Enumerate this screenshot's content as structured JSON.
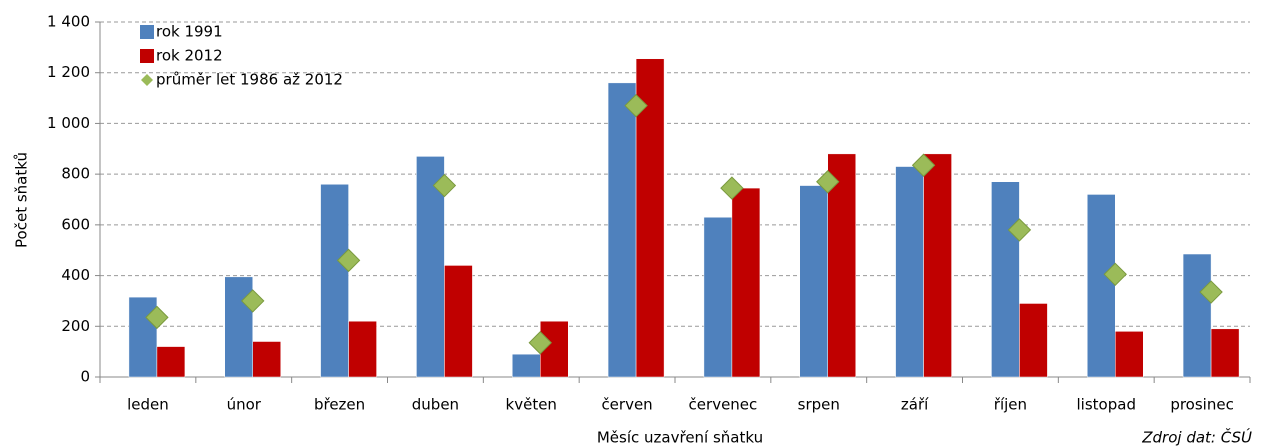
{
  "chart_data": {
    "type": "bar",
    "y_label": "Počet sňatků",
    "x_label": "Měsíc uzavření sňatku",
    "source": "Zdroj dat: ČSÚ",
    "categories": [
      "leden",
      "únor",
      "březen",
      "duben",
      "květen",
      "červen",
      "červenec",
      "srpen",
      "září",
      "říjen",
      "listopad",
      "prosinec"
    ],
    "series": [
      {
        "name": "rok 1991",
        "color": "#4f81bd",
        "marker": "bar",
        "values": [
          315,
          395,
          760,
          870,
          90,
          1160,
          630,
          755,
          830,
          770,
          720,
          485
        ]
      },
      {
        "name": "rok 2012",
        "color": "#c00000",
        "marker": "bar",
        "values": [
          120,
          140,
          220,
          440,
          220,
          1255,
          745,
          880,
          880,
          290,
          180,
          190
        ]
      },
      {
        "name": "průměr let 1986 až 2012",
        "color": "#9bbb59",
        "marker": "diamond",
        "values": [
          235,
          300,
          460,
          755,
          135,
          1070,
          745,
          770,
          835,
          580,
          405,
          335
        ]
      }
    ],
    "ylim": [
      0,
      1400
    ],
    "yticks": [
      0,
      200,
      400,
      600,
      800,
      {
        "value": 1000,
        "label": "1 000"
      },
      {
        "value": 1200,
        "label": "1 200"
      },
      {
        "value": 1400,
        "label": "1 400"
      }
    ],
    "grid": true,
    "legend": "top-left"
  }
}
